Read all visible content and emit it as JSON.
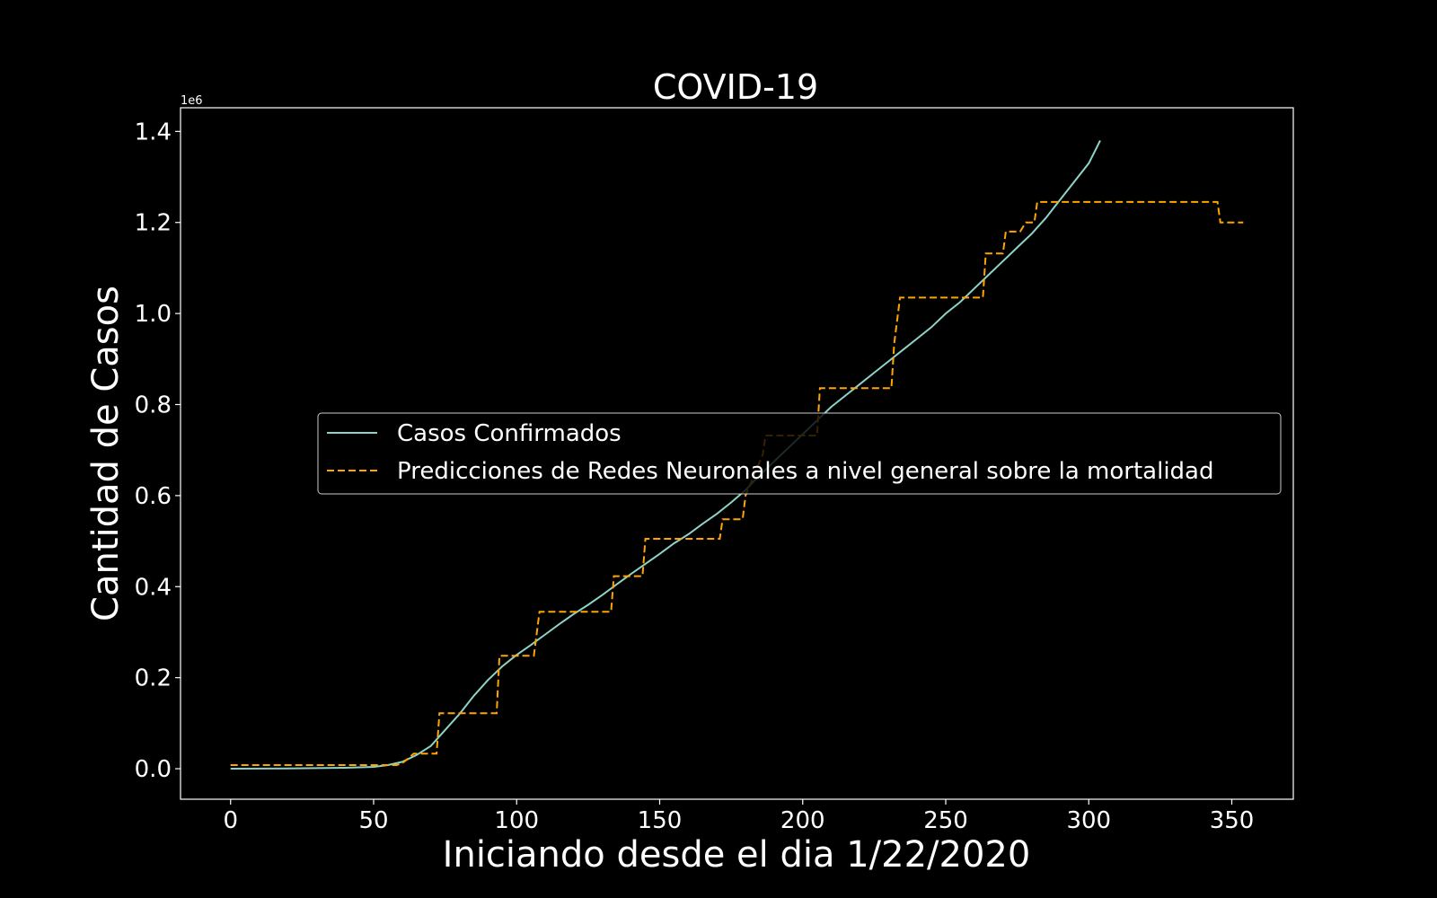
{
  "chart_data": {
    "type": "line",
    "title": "COVID-19",
    "xlabel": "Iniciando desde el dia 1/22/2020",
    "ylabel": "Cantidad de Casos",
    "y_offset_label": "1e6",
    "xlim": [
      -17.5,
      371.5
    ],
    "ylim": [
      -0.067,
      1.452
    ],
    "x_ticks": [
      0,
      50,
      100,
      150,
      200,
      250,
      300,
      350
    ],
    "x_tick_labels": [
      "0",
      "50",
      "100",
      "150",
      "200",
      "250",
      "300",
      "350"
    ],
    "y_ticks": [
      0.0,
      0.2,
      0.4,
      0.6,
      0.8,
      1.0,
      1.2,
      1.4
    ],
    "y_tick_labels": [
      "0.0",
      "0.2",
      "0.4",
      "0.6",
      "0.8",
      "1.0",
      "1.2",
      "1.4"
    ],
    "grid": false,
    "legend_position": "center-right",
    "background": "#000000",
    "series": [
      {
        "name": "Casos Confirmados",
        "color": "#8dd3c7",
        "style": "solid",
        "points": [
          [
            0,
            0
          ],
          [
            20,
            0.0005
          ],
          [
            40,
            0.002
          ],
          [
            50,
            0.004
          ],
          [
            55,
            0.008
          ],
          [
            60,
            0.015
          ],
          [
            65,
            0.03
          ],
          [
            70,
            0.05
          ],
          [
            75,
            0.085
          ],
          [
            80,
            0.12
          ],
          [
            85,
            0.16
          ],
          [
            90,
            0.195
          ],
          [
            95,
            0.225
          ],
          [
            100,
            0.25
          ],
          [
            105,
            0.272
          ],
          [
            110,
            0.295
          ],
          [
            115,
            0.318
          ],
          [
            120,
            0.34
          ],
          [
            125,
            0.36
          ],
          [
            130,
            0.382
          ],
          [
            135,
            0.405
          ],
          [
            140,
            0.428
          ],
          [
            145,
            0.45
          ],
          [
            150,
            0.472
          ],
          [
            155,
            0.495
          ],
          [
            160,
            0.515
          ],
          [
            165,
            0.538
          ],
          [
            170,
            0.56
          ],
          [
            175,
            0.585
          ],
          [
            180,
            0.612
          ],
          [
            185,
            0.645
          ],
          [
            190,
            0.675
          ],
          [
            195,
            0.705
          ],
          [
            200,
            0.735
          ],
          [
            205,
            0.765
          ],
          [
            210,
            0.795
          ],
          [
            215,
            0.82
          ],
          [
            220,
            0.845
          ],
          [
            225,
            0.87
          ],
          [
            230,
            0.895
          ],
          [
            235,
            0.92
          ],
          [
            240,
            0.945
          ],
          [
            245,
            0.97
          ],
          [
            250,
            1.0
          ],
          [
            255,
            1.025
          ],
          [
            260,
            1.055
          ],
          [
            265,
            1.085
          ],
          [
            270,
            1.115
          ],
          [
            275,
            1.145
          ],
          [
            280,
            1.175
          ],
          [
            285,
            1.21
          ],
          [
            290,
            1.25
          ],
          [
            295,
            1.29
          ],
          [
            300,
            1.33
          ],
          [
            304,
            1.38
          ]
        ]
      },
      {
        "name": "Predicciones de Redes Neuronales a nivel general sobre la mortalidad",
        "color": "#ffa500",
        "style": "dashed",
        "points": [
          [
            0,
            0.008
          ],
          [
            58,
            0.008
          ],
          [
            60,
            0.012
          ],
          [
            62,
            0.022
          ],
          [
            64,
            0.033
          ],
          [
            72,
            0.033
          ],
          [
            73,
            0.122
          ],
          [
            93,
            0.122
          ],
          [
            94,
            0.248
          ],
          [
            106,
            0.248
          ],
          [
            108,
            0.345
          ],
          [
            133,
            0.345
          ],
          [
            134,
            0.423
          ],
          [
            144,
            0.423
          ],
          [
            145,
            0.505
          ],
          [
            171,
            0.505
          ],
          [
            172,
            0.548
          ],
          [
            179,
            0.548
          ],
          [
            180,
            0.6
          ],
          [
            186,
            0.69
          ],
          [
            187,
            0.732
          ],
          [
            205,
            0.732
          ],
          [
            206,
            0.836
          ],
          [
            231,
            0.836
          ],
          [
            232,
            0.935
          ],
          [
            234,
            1.035
          ],
          [
            263,
            1.035
          ],
          [
            264,
            1.132
          ],
          [
            270,
            1.132
          ],
          [
            271,
            1.18
          ],
          [
            276,
            1.18
          ],
          [
            278,
            1.2
          ],
          [
            281,
            1.2
          ],
          [
            282,
            1.245
          ],
          [
            345,
            1.245
          ],
          [
            346,
            1.2
          ],
          [
            354,
            1.2
          ]
        ]
      }
    ]
  }
}
